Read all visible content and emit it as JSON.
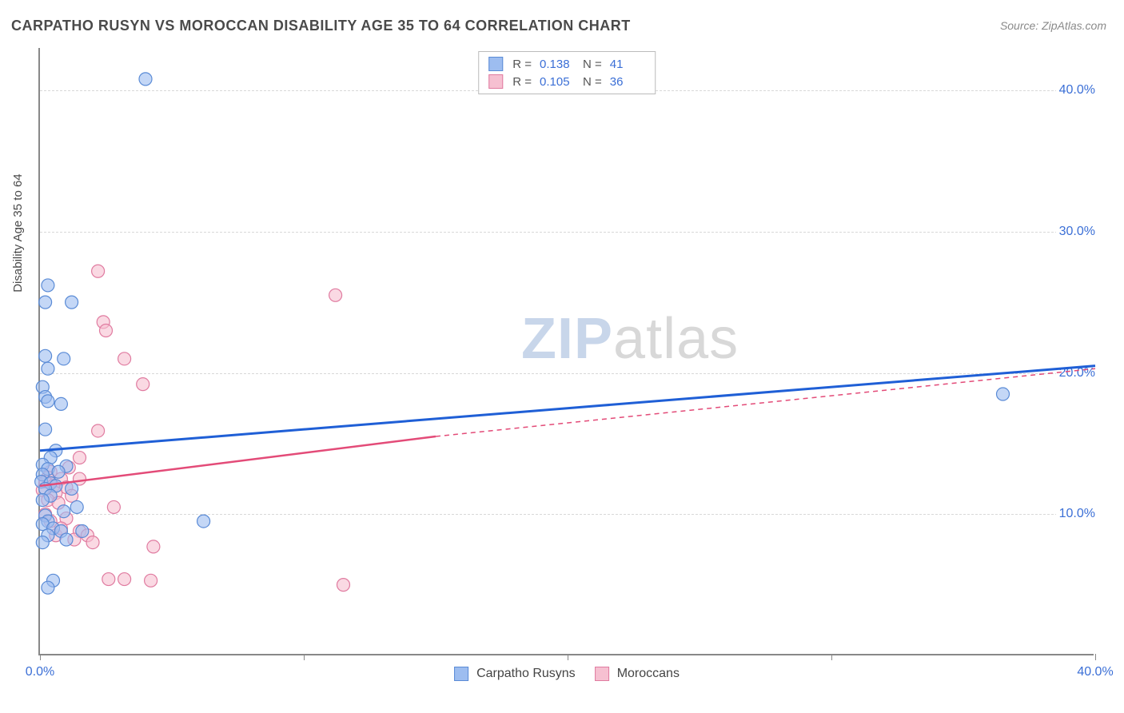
{
  "title": "CARPATHO RUSYN VS MOROCCAN DISABILITY AGE 35 TO 64 CORRELATION CHART",
  "source_label": "Source:",
  "source_name": "ZipAtlas.com",
  "y_axis_label": "Disability Age 35 to 64",
  "watermark_bold": "ZIP",
  "watermark_rest": "atlas",
  "chart": {
    "type": "scatter",
    "xlim": [
      0,
      40
    ],
    "ylim": [
      0,
      43
    ],
    "xtick_positions": [
      0,
      10,
      20,
      30,
      40
    ],
    "xtick_labels_shown": {
      "0": "0.0%",
      "40": "40.0%"
    },
    "ytick_positions": [
      10,
      20,
      30,
      40
    ],
    "ytick_labels": {
      "10": "10.0%",
      "20": "20.0%",
      "30": "30.0%",
      "40": "40.0%"
    },
    "background_color": "#ffffff",
    "grid_color": "#d8d8d8",
    "axis_color": "#888888",
    "series": [
      {
        "name": "Carpatho Rusyns",
        "color_fill": "#9dbdf0",
        "color_stroke": "#5a8bd6",
        "trend_color": "#1f5fd6",
        "marker_radius": 8,
        "r_label": "R  =",
        "n_label": "N  =",
        "r": "0.138",
        "n": "41",
        "trend": {
          "x1": 0,
          "y1": 14.5,
          "x2": 40,
          "y2": 20.5
        },
        "points": [
          [
            4.0,
            40.8
          ],
          [
            0.3,
            26.2
          ],
          [
            0.2,
            25.0
          ],
          [
            1.2,
            25.0
          ],
          [
            0.2,
            21.2
          ],
          [
            0.9,
            21.0
          ],
          [
            0.3,
            20.3
          ],
          [
            0.1,
            19.0
          ],
          [
            0.2,
            18.3
          ],
          [
            0.3,
            18.0
          ],
          [
            0.8,
            17.8
          ],
          [
            0.2,
            16.0
          ],
          [
            0.6,
            14.5
          ],
          [
            0.4,
            14.0
          ],
          [
            0.1,
            13.5
          ],
          [
            1.0,
            13.4
          ],
          [
            0.3,
            13.2
          ],
          [
            0.1,
            12.8
          ],
          [
            0.05,
            12.3
          ],
          [
            0.4,
            12.2
          ],
          [
            0.6,
            12.0
          ],
          [
            0.2,
            11.8
          ],
          [
            1.2,
            11.8
          ],
          [
            0.4,
            11.3
          ],
          [
            0.1,
            11.0
          ],
          [
            1.4,
            10.5
          ],
          [
            0.9,
            10.2
          ],
          [
            0.2,
            9.9
          ],
          [
            0.3,
            9.5
          ],
          [
            6.2,
            9.5
          ],
          [
            0.1,
            9.3
          ],
          [
            0.5,
            9.0
          ],
          [
            0.8,
            8.8
          ],
          [
            1.6,
            8.8
          ],
          [
            0.3,
            8.5
          ],
          [
            1.0,
            8.2
          ],
          [
            0.1,
            8.0
          ],
          [
            0.5,
            5.3
          ],
          [
            0.3,
            4.8
          ],
          [
            36.5,
            18.5
          ],
          [
            0.7,
            13.0
          ]
        ]
      },
      {
        "name": "Moroccans",
        "color_fill": "#f6c0d1",
        "color_stroke": "#e07ba0",
        "trend_color": "#e34b78",
        "marker_radius": 8,
        "r_label": "R  =",
        "n_label": "N  =",
        "r": "0.105",
        "n": "36",
        "trend_solid": {
          "x1": 0,
          "y1": 12.0,
          "x2": 15,
          "y2": 15.5
        },
        "trend_dashed": {
          "x1": 15,
          "y1": 15.5,
          "x2": 40,
          "y2": 20.3
        },
        "points": [
          [
            2.2,
            27.2
          ],
          [
            2.4,
            23.6
          ],
          [
            2.5,
            23.0
          ],
          [
            11.2,
            25.5
          ],
          [
            3.2,
            21.0
          ],
          [
            3.9,
            19.2
          ],
          [
            2.2,
            15.9
          ],
          [
            1.5,
            14.0
          ],
          [
            1.1,
            13.3
          ],
          [
            0.4,
            13.0
          ],
          [
            0.3,
            12.6
          ],
          [
            0.8,
            12.5
          ],
          [
            0.2,
            12.3
          ],
          [
            0.5,
            12.0
          ],
          [
            1.0,
            11.9
          ],
          [
            0.1,
            11.7
          ],
          [
            0.6,
            11.5
          ],
          [
            1.2,
            11.3
          ],
          [
            0.3,
            11.0
          ],
          [
            0.7,
            10.8
          ],
          [
            2.8,
            10.5
          ],
          [
            0.2,
            10.0
          ],
          [
            1.0,
            9.7
          ],
          [
            0.4,
            9.5
          ],
          [
            1.5,
            8.8
          ],
          [
            1.8,
            8.5
          ],
          [
            0.6,
            8.5
          ],
          [
            1.3,
            8.2
          ],
          [
            2.0,
            8.0
          ],
          [
            4.3,
            7.7
          ],
          [
            2.6,
            5.4
          ],
          [
            3.2,
            5.4
          ],
          [
            4.2,
            5.3
          ],
          [
            11.5,
            5.0
          ],
          [
            0.8,
            9.0
          ],
          [
            1.5,
            12.5
          ]
        ]
      }
    ]
  },
  "legend_bottom": [
    {
      "label": "Carpatho Rusyns"
    },
    {
      "label": "Moroccans"
    }
  ]
}
